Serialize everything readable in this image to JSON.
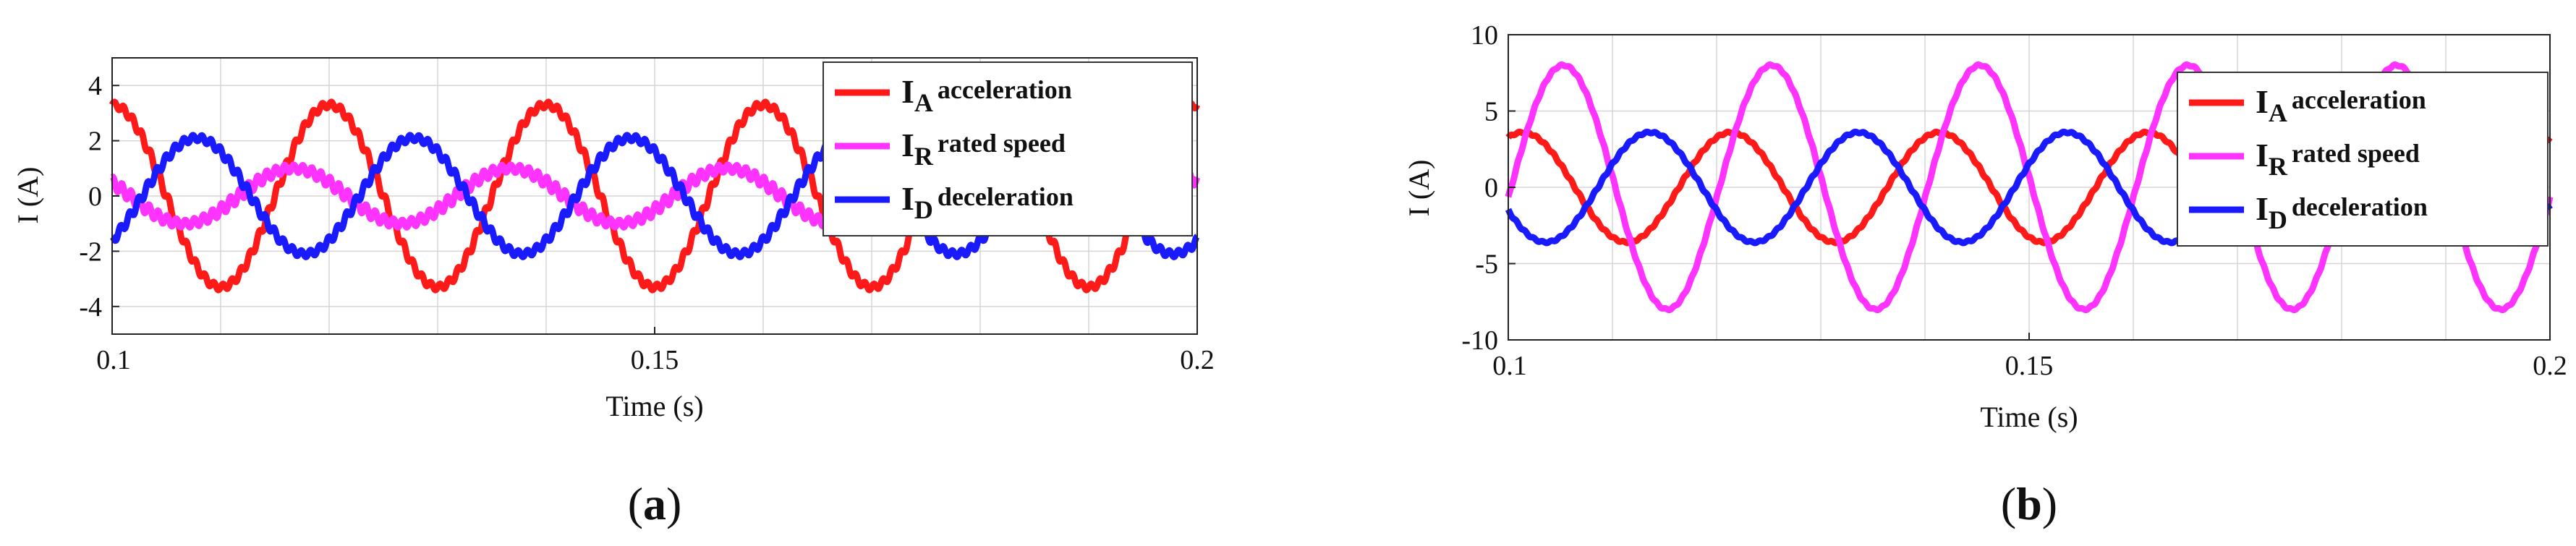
{
  "chart_data": [
    {
      "type": "line",
      "caption_open": "(",
      "caption_letter": "a",
      "caption_close": ")",
      "xlabel": "Time (s)",
      "ylabel": "I (A)",
      "xlim": [
        0.1,
        0.2
      ],
      "ylim": [
        -5,
        5
      ],
      "xticks": [
        "0.1",
        "0.15",
        "0.2"
      ],
      "yticks": [
        "-4",
        "-2",
        "0",
        "2",
        "4"
      ],
      "xtick_values": [
        0.1,
        0.15,
        0.2
      ],
      "ytick_values": [
        -4,
        -2,
        0,
        2,
        4
      ],
      "grid": true,
      "legend_position": "top-right",
      "series": [
        {
          "name_main": "I",
          "name_sub": "A",
          "name_rest": "acceleration",
          "color": "#ff1a1a",
          "amplitude": 3.3,
          "frequency_hz": 50,
          "phase_deg": 90,
          "ripple": 0.18
        },
        {
          "name_main": "I",
          "name_sub": "R",
          "name_rest": "rated speed",
          "color": "#ff33ff",
          "amplitude": 1.0,
          "frequency_hz": 50,
          "phase_deg": 150,
          "ripple": 0.22
        },
        {
          "name_main": "I",
          "name_sub": "D",
          "name_rest": "deceleration",
          "color": "#1a1aff",
          "amplitude": 2.1,
          "frequency_hz": 50,
          "phase_deg": -50,
          "ripple": 0.18
        }
      ]
    },
    {
      "type": "line",
      "caption_open": "(",
      "caption_letter": "b",
      "caption_close": ")",
      "xlabel": "Time (s)",
      "ylabel": "I (A)",
      "xlim": [
        0.1,
        0.2
      ],
      "ylim": [
        -10,
        10
      ],
      "xticks": [
        "0.1",
        "0.15",
        "0.2"
      ],
      "yticks": [
        "-10",
        "-5",
        "0",
        "5",
        "10"
      ],
      "xtick_values": [
        0.1,
        0.15,
        0.2
      ],
      "ytick_values": [
        -10,
        -5,
        0,
        5,
        10
      ],
      "grid": true,
      "legend_position": "top-right",
      "series": [
        {
          "name_main": "I",
          "name_sub": "A",
          "name_rest": "acceleration",
          "color": "#ff1a1a",
          "amplitude": 3.6,
          "frequency_hz": 50,
          "phase_deg": 65,
          "ripple": 0.08
        },
        {
          "name_main": "I",
          "name_sub": "R",
          "name_rest": "rated speed",
          "color": "#ff33ff",
          "amplitude": 8.0,
          "frequency_hz": 50,
          "phase_deg": -5,
          "ripple": 0.08
        },
        {
          "name_main": "I",
          "name_sub": "D",
          "name_rest": "deceleration",
          "color": "#1a1aff",
          "amplitude": 3.6,
          "frequency_hz": 50,
          "phase_deg": -155,
          "ripple": 0.08
        }
      ]
    }
  ]
}
